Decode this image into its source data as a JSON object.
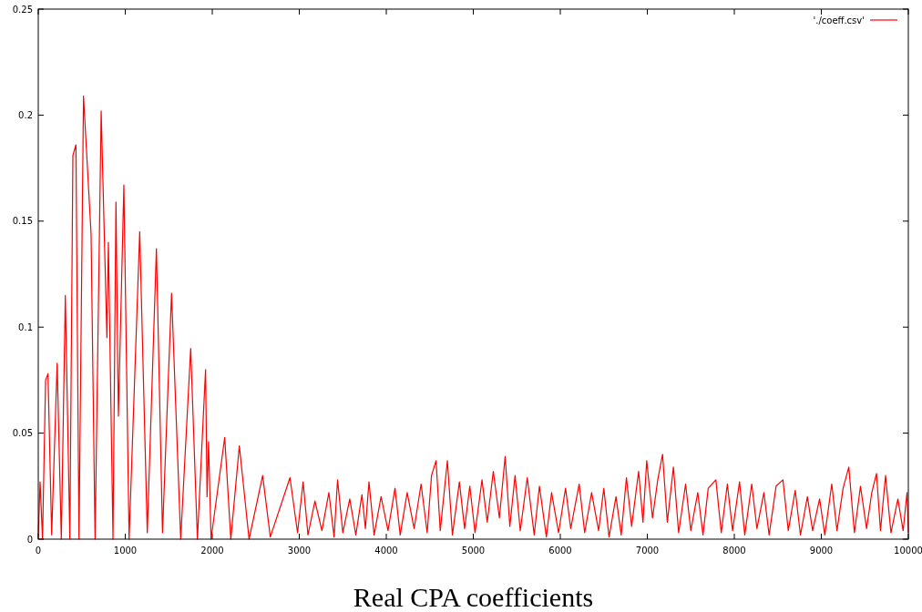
{
  "chart_data": {
    "type": "line",
    "xlabel": "Real CPA coefficients",
    "xlim": [
      0,
      10000
    ],
    "xticks": [
      0,
      1000,
      2000,
      3000,
      4000,
      5000,
      6000,
      7000,
      8000,
      9000,
      10000
    ],
    "ylim": [
      0,
      0.25
    ],
    "yticks": [
      0,
      0.05,
      0.1,
      0.15,
      0.2,
      0.25
    ],
    "grid": false,
    "legend": "top right",
    "line_style": "solid",
    "series": [
      {
        "name": "'./coeff.csv'",
        "color": "#ff0000",
        "x": [
          0,
          21,
          49,
          84,
          112,
          154,
          217,
          265,
          311,
          363,
          398,
          433,
          468,
          520,
          607,
          653,
          723,
          789,
          806,
          859,
          893,
          921,
          984,
          1044,
          1166,
          1253,
          1358,
          1428,
          1532,
          1637,
          1752,
          1829,
          1923,
          1940,
          1957,
          1986,
          2143,
          2213,
          2311,
          2423,
          2579,
          2667,
          2893,
          2980,
          3044,
          3100,
          3180,
          3260,
          3340,
          3400,
          3440,
          3500,
          3580,
          3650,
          3720,
          3760,
          3801,
          3860,
          3940,
          4020,
          4100,
          4160,
          4240,
          4320,
          4400,
          4470,
          4520,
          4572,
          4620,
          4702,
          4760,
          4840,
          4900,
          4960,
          5020,
          5100,
          5160,
          5230,
          5300,
          5366,
          5420,
          5480,
          5540,
          5620,
          5700,
          5760,
          5840,
          5900,
          5980,
          6060,
          6120,
          6217,
          6280,
          6360,
          6440,
          6500,
          6560,
          6640,
          6700,
          6760,
          6820,
          6900,
          6950,
          6993,
          7060,
          7120,
          7175,
          7230,
          7300,
          7360,
          7440,
          7500,
          7580,
          7640,
          7700,
          7788,
          7850,
          7920,
          7980,
          8060,
          8120,
          8200,
          8260,
          8340,
          8400,
          8480,
          8559,
          8620,
          8700,
          8760,
          8840,
          8900,
          8980,
          9040,
          9120,
          9180,
          9250,
          9316,
          9380,
          9450,
          9520,
          9580,
          9634,
          9680,
          9738,
          9800,
          9880,
          9940,
          9985,
          10000
        ],
        "values": [
          0.001,
          0.027,
          0,
          0.075,
          0.078,
          0.002,
          0.083,
          0,
          0.115,
          0,
          0.181,
          0.186,
          0,
          0.209,
          0.144,
          0,
          0.202,
          0.095,
          0.14,
          0,
          0.159,
          0.058,
          0.167,
          0,
          0.145,
          0.003,
          0.137,
          0.003,
          0.116,
          0,
          0.09,
          0,
          0.08,
          0.02,
          0.046,
          0,
          0.048,
          0,
          0.044,
          0,
          0.03,
          0.001,
          0.029,
          0.003,
          0.027,
          0.002,
          0.018,
          0.004,
          0.022,
          0.001,
          0.028,
          0.003,
          0.019,
          0.002,
          0.021,
          0.005,
          0.027,
          0.002,
          0.02,
          0.004,
          0.024,
          0.002,
          0.022,
          0.005,
          0.026,
          0.003,
          0.03,
          0.037,
          0.004,
          0.037,
          0.002,
          0.027,
          0.005,
          0.025,
          0.003,
          0.028,
          0.008,
          0.032,
          0.01,
          0.039,
          0.006,
          0.03,
          0.004,
          0.029,
          0.002,
          0.025,
          0.001,
          0.022,
          0.003,
          0.024,
          0.005,
          0.026,
          0.003,
          0.022,
          0.004,
          0.024,
          0.001,
          0.02,
          0.002,
          0.029,
          0.006,
          0.032,
          0.008,
          0.037,
          0.01,
          0.028,
          0.04,
          0.008,
          0.034,
          0.003,
          0.026,
          0.004,
          0.022,
          0.002,
          0.024,
          0.028,
          0.003,
          0.026,
          0.004,
          0.027,
          0.002,
          0.026,
          0.005,
          0.022,
          0.002,
          0.025,
          0.028,
          0.004,
          0.023,
          0.002,
          0.02,
          0.004,
          0.019,
          0.002,
          0.026,
          0.004,
          0.024,
          0.034,
          0.003,
          0.025,
          0.005,
          0.022,
          0.031,
          0.004,
          0.03,
          0.003,
          0.019,
          0.004,
          0.022,
          0.003
        ]
      }
    ]
  }
}
